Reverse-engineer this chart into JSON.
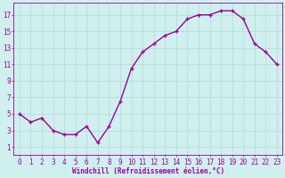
{
  "x": [
    0,
    1,
    2,
    3,
    4,
    5,
    6,
    7,
    8,
    9,
    10,
    11,
    12,
    13,
    14,
    15,
    16,
    17,
    18,
    19,
    20,
    21,
    22,
    23
  ],
  "y": [
    5,
    4,
    4.5,
    3,
    2.5,
    2.5,
    3.5,
    1.5,
    3.5,
    6.5,
    10.5,
    12.5,
    13.5,
    14.5,
    15,
    16.5,
    17,
    17,
    17.5,
    17.5,
    16.5,
    13.5,
    12.5,
    11
  ],
  "line_color": "#990099",
  "marker": "+",
  "marker_size": 3,
  "line_width": 1.0,
  "xlabel": "Windchill (Refroidissement éolien,°C)",
  "xlabel_fontsize": 5.5,
  "ylabel_ticks": [
    1,
    3,
    5,
    7,
    9,
    11,
    13,
    15,
    17
  ],
  "xtick_labels": [
    "0",
    "1",
    "2",
    "3",
    "4",
    "5",
    "6",
    "7",
    "8",
    "9",
    "10",
    "11",
    "12",
    "13",
    "14",
    "15",
    "16",
    "17",
    "18",
    "19",
    "20",
    "21",
    "22",
    "23"
  ],
  "ylim": [
    0,
    18.5
  ],
  "xlim": [
    -0.5,
    23.5
  ],
  "background_color": "#d0f0f0",
  "grid_color": "#b0d8d8",
  "tick_color": "#990099",
  "tick_fontsize": 5.5,
  "xlabel_fontweight": "bold"
}
